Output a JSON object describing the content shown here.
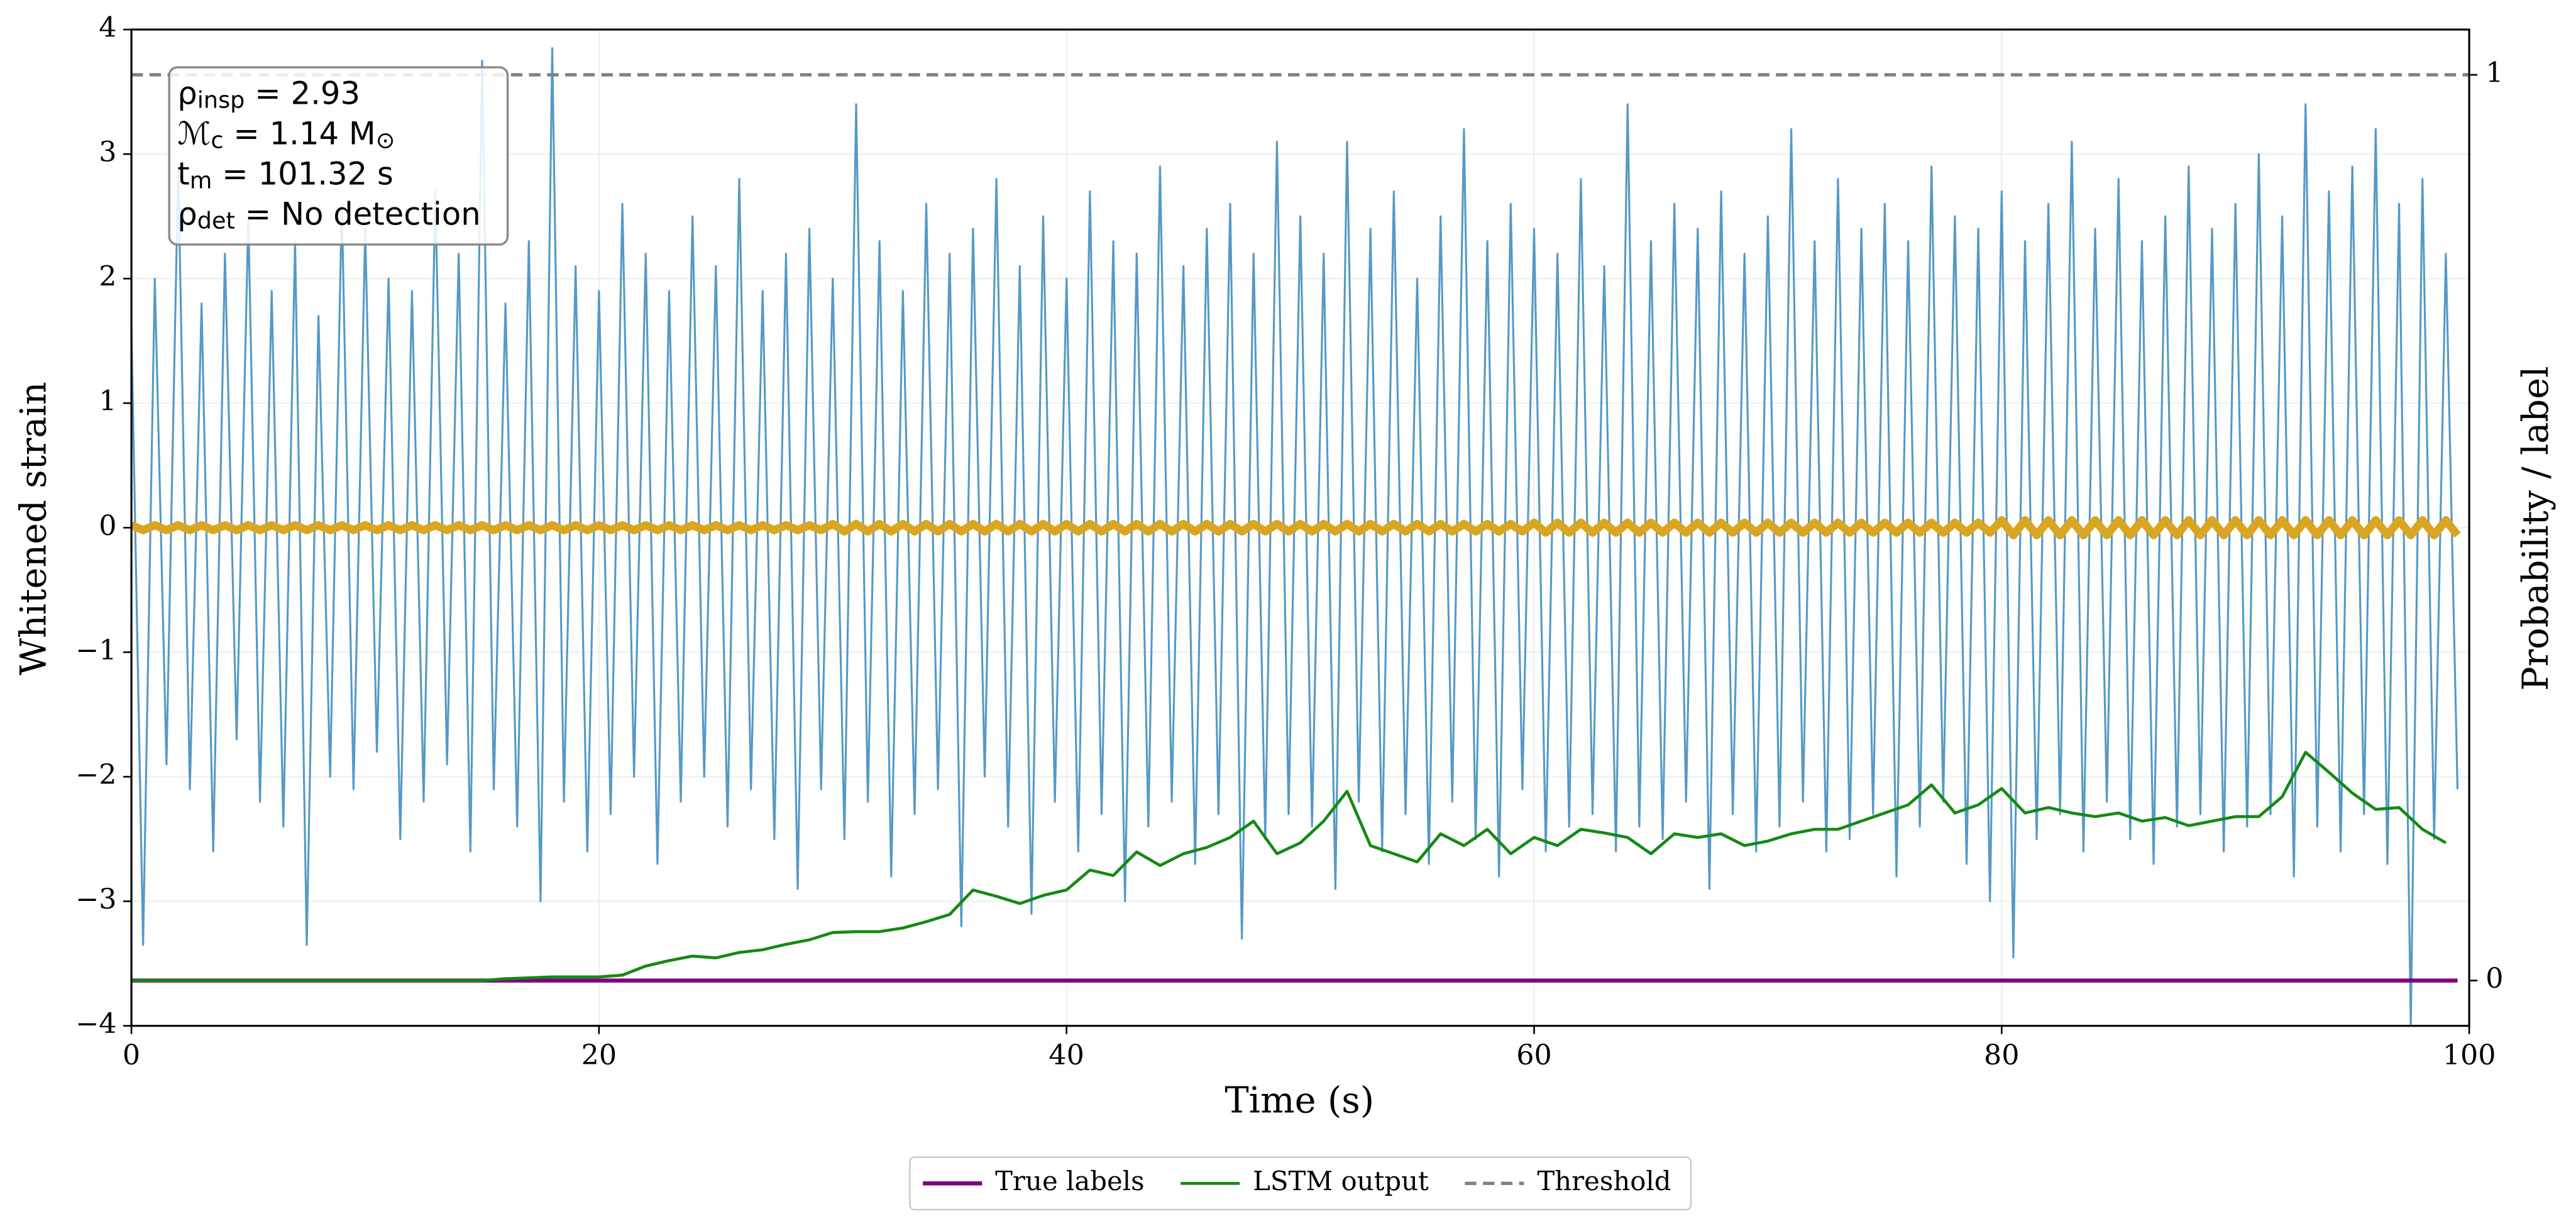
{
  "chart_data": {
    "type": "line",
    "xlabel": "Time (s)",
    "ylabel": "Whitened strain",
    "y2label": "Probability / label",
    "xlim": [
      0,
      100
    ],
    "xticks": [
      0,
      20,
      40,
      60,
      80,
      100
    ],
    "ylim": [
      -4,
      4
    ],
    "yticks": [
      {
        "value": -4,
        "label": "−4"
      },
      {
        "value": -3,
        "label": "−3"
      },
      {
        "value": -2,
        "label": "−2"
      },
      {
        "value": -1,
        "label": "−1"
      },
      0,
      1,
      2,
      3,
      4
    ],
    "y2lim": [
      -0.05,
      1.05
    ],
    "y2ticks": [
      0,
      1
    ],
    "grid": true,
    "legend": "bottom center",
    "annotations": [
      [
        {
          "text": "ρ"
        },
        {
          "text": "insp",
          "sub": true
        },
        {
          "text": " = 2.93"
        }
      ],
      [
        {
          "text": "ℳ"
        },
        {
          "text": "c",
          "sub": true
        },
        {
          "text": " = 1.14 M"
        },
        {
          "text": "⊙",
          "sub": true
        }
      ],
      [
        {
          "text": "t"
        },
        {
          "text": "m",
          "sub": true
        },
        {
          "text": " = 101.32 s"
        }
      ],
      [
        {
          "text": "ρ"
        },
        {
          "text": "det",
          "sub": true
        },
        {
          "text": " = No detection"
        }
      ]
    ],
    "x": [
      0,
      0.5,
      1,
      1.5,
      2,
      2.5,
      3,
      3.5,
      4,
      4.5,
      5,
      5.5,
      6,
      6.5,
      7,
      7.5,
      8,
      8.5,
      9,
      9.5,
      10,
      10.5,
      11,
      11.5,
      12,
      12.5,
      13,
      13.5,
      14,
      14.5,
      15,
      15.5,
      16,
      16.5,
      17,
      17.5,
      18,
      18.5,
      19,
      19.5,
      20,
      20.5,
      21,
      21.5,
      22,
      22.5,
      23,
      23.5,
      24,
      24.5,
      25,
      25.5,
      26,
      26.5,
      27,
      27.5,
      28,
      28.5,
      29,
      29.5,
      30,
      30.5,
      31,
      31.5,
      32,
      32.5,
      33,
      33.5,
      34,
      34.5,
      35,
      35.5,
      36,
      36.5,
      37,
      37.5,
      38,
      38.5,
      39,
      39.5,
      40,
      40.5,
      41,
      41.5,
      42,
      42.5,
      43,
      43.5,
      44,
      44.5,
      45,
      45.5,
      46,
      46.5,
      47,
      47.5,
      48,
      48.5,
      49,
      49.5,
      50,
      50.5,
      51,
      51.5,
      52,
      52.5,
      53,
      53.5,
      54,
      54.5,
      55,
      55.5,
      56,
      56.5,
      57,
      57.5,
      58,
      58.5,
      59,
      59.5,
      60,
      60.5,
      61,
      61.5,
      62,
      62.5,
      63,
      63.5,
      64,
      64.5,
      65,
      65.5,
      66,
      66.5,
      67,
      67.5,
      68,
      68.5,
      69,
      69.5,
      70,
      70.5,
      71,
      71.5,
      72,
      72.5,
      73,
      73.5,
      74,
      74.5,
      75,
      75.5,
      76,
      76.5,
      77,
      77.5,
      78,
      78.5,
      79,
      79.5,
      80,
      80.5,
      81,
      81.5,
      82,
      82.5,
      83,
      83.5,
      84,
      84.5,
      85,
      85.5,
      86,
      86.5,
      87,
      87.5,
      88,
      88.5,
      89,
      89.5,
      90,
      90.5,
      91,
      91.5,
      92,
      92.5,
      93,
      93.5,
      94,
      94.5,
      95,
      95.5,
      96,
      96.5,
      97,
      97.5,
      98,
      98.5,
      99,
      99.5
    ],
    "series": [
      {
        "color": "#5599c7",
        "width": 1.2,
        "values": [
          1.6,
          -3.35,
          2.0,
          -1.9,
          2.9,
          -2.1,
          1.8,
          -2.6,
          2.2,
          -1.7,
          2.5,
          -2.2,
          1.9,
          -2.4,
          2.3,
          -3.35,
          1.7,
          -2.0,
          2.6,
          -2.1,
          2.4,
          -1.8,
          2.0,
          -2.5,
          1.9,
          -2.2,
          2.7,
          -1.9,
          2.2,
          -2.6,
          3.75,
          -2.1,
          1.8,
          -2.4,
          2.3,
          -3.0,
          3.85,
          -2.2,
          2.1,
          -2.6,
          1.9,
          -2.3,
          2.6,
          -2.0,
          2.2,
          -2.7,
          1.9,
          -2.2,
          2.5,
          -2.0,
          2.1,
          -2.4,
          2.8,
          -2.1,
          1.9,
          -2.5,
          2.2,
          -2.9,
          2.4,
          -2.1,
          2.0,
          -2.5,
          3.4,
          -2.2,
          2.3,
          -2.8,
          1.9,
          -2.3,
          2.6,
          -2.1,
          2.2,
          -3.2,
          2.4,
          -2.0,
          2.8,
          -2.4,
          2.1,
          -3.1,
          2.5,
          -2.2,
          2.0,
          -2.6,
          2.7,
          -2.3,
          2.3,
          -3.0,
          2.2,
          -2.4,
          2.9,
          -2.2,
          2.1,
          -2.7,
          2.4,
          -2.3,
          2.6,
          -3.3,
          2.2,
          -2.5,
          3.1,
          -2.3,
          2.5,
          -2.4,
          2.2,
          -2.9,
          3.1,
          -2.2,
          2.4,
          -2.6,
          2.7,
          -2.3,
          2.0,
          -2.7,
          2.5,
          -2.2,
          3.2,
          -2.5,
          2.3,
          -2.8,
          2.6,
          -2.1,
          2.4,
          -2.6,
          2.2,
          -2.4,
          2.8,
          -2.3,
          2.1,
          -2.6,
          3.4,
          -2.4,
          2.3,
          -2.5,
          2.6,
          -2.2,
          2.4,
          -2.9,
          2.7,
          -2.3,
          2.2,
          -2.6,
          2.5,
          -2.4,
          3.2,
          -2.2,
          2.3,
          -2.6,
          2.8,
          -2.5,
          2.4,
          -2.3,
          2.6,
          -2.8,
          2.3,
          -2.4,
          2.9,
          -2.2,
          2.5,
          -2.7,
          2.4,
          -3.0,
          2.7,
          -3.45,
          2.3,
          -2.5,
          2.6,
          -2.3,
          3.1,
          -2.6,
          2.4,
          -2.2,
          2.8,
          -2.5,
          2.3,
          -2.7,
          2.5,
          -2.4,
          2.9,
          -2.3,
          2.4,
          -2.6,
          2.6,
          -2.4,
          3.0,
          -2.3,
          2.5,
          -2.8,
          3.4,
          -2.4,
          2.7,
          -2.6,
          2.9,
          -2.3,
          3.2,
          -2.7,
          2.6,
          -4.0,
          2.8,
          -2.5,
          2.2,
          -2.1
        ]
      },
      {
        "color": "#daa520",
        "width": 5,
        "values": [
          0.02,
          -0.02,
          0.02,
          -0.02,
          0.02,
          -0.02,
          0.02,
          -0.02,
          0.02,
          -0.02,
          0.02,
          -0.02,
          0.02,
          -0.02,
          0.02,
          -0.02,
          0.02,
          -0.02,
          0.02,
          -0.02,
          0.02,
          -0.02,
          0.02,
          -0.02,
          0.02,
          -0.02,
          0.02,
          -0.02,
          0.02,
          -0.02,
          0.02,
          -0.02,
          0.02,
          -0.02,
          0.02,
          -0.02,
          0.02,
          -0.02,
          0.02,
          -0.02,
          0.02,
          -0.02,
          0.02,
          -0.02,
          0.02,
          -0.02,
          0.02,
          -0.02,
          0.02,
          -0.02,
          0.02,
          -0.02,
          0.02,
          -0.02,
          0.02,
          -0.02,
          0.02,
          -0.02,
          0.02,
          -0.02,
          0.03,
          -0.03,
          0.03,
          -0.03,
          0.03,
          -0.03,
          0.03,
          -0.03,
          0.03,
          -0.03,
          0.03,
          -0.03,
          0.03,
          -0.03,
          0.03,
          -0.03,
          0.03,
          -0.03,
          0.03,
          -0.03,
          0.03,
          -0.03,
          0.03,
          -0.03,
          0.03,
          -0.03,
          0.03,
          -0.03,
          0.03,
          -0.03,
          0.03,
          -0.03,
          0.03,
          -0.03,
          0.03,
          -0.03,
          0.03,
          -0.03,
          0.03,
          -0.03,
          0.03,
          -0.03,
          0.03,
          -0.03,
          0.03,
          -0.03,
          0.03,
          -0.03,
          0.03,
          -0.03,
          0.03,
          -0.03,
          0.03,
          -0.03,
          0.03,
          -0.03,
          0.03,
          -0.03,
          0.03,
          -0.03,
          0.04,
          -0.04,
          0.04,
          -0.04,
          0.04,
          -0.04,
          0.04,
          -0.04,
          0.04,
          -0.04,
          0.04,
          -0.04,
          0.04,
          -0.04,
          0.04,
          -0.04,
          0.04,
          -0.04,
          0.04,
          -0.04,
          0.04,
          -0.04,
          0.04,
          -0.04,
          0.04,
          -0.04,
          0.04,
          -0.04,
          0.04,
          -0.04,
          0.04,
          -0.04,
          0.04,
          -0.04,
          0.04,
          -0.04,
          0.04,
          -0.04,
          0.04,
          -0.04,
          0.06,
          -0.06,
          0.06,
          -0.06,
          0.06,
          -0.06,
          0.06,
          -0.06,
          0.06,
          -0.06,
          0.06,
          -0.06,
          0.06,
          -0.06,
          0.06,
          -0.06,
          0.06,
          -0.06,
          0.06,
          -0.06,
          0.06,
          -0.06,
          0.06,
          -0.06,
          0.06,
          -0.06,
          0.06,
          -0.06,
          0.06,
          -0.06,
          0.06,
          -0.06,
          0.06,
          -0.06,
          0.06,
          -0.06,
          0.06,
          -0.06,
          0.06,
          -0.06
        ]
      },
      {
        "name": "True labels",
        "color": "#800080",
        "width": 2.5,
        "axis": "y2",
        "x": [
          0,
          99.5
        ],
        "values": [
          0,
          0
        ]
      },
      {
        "name": "LSTM output",
        "color": "#138a13",
        "width": 1.8,
        "axis": "y2",
        "x": [
          0,
          1,
          2,
          3,
          4,
          5,
          6,
          7,
          8,
          9,
          10,
          11,
          12,
          13,
          14,
          15,
          16,
          17,
          18,
          19,
          20,
          21,
          22,
          23,
          24,
          25,
          26,
          27,
          28,
          29,
          30,
          31,
          32,
          33,
          34,
          35,
          36,
          37,
          38,
          39,
          40,
          41,
          42,
          43,
          44,
          45,
          46,
          47,
          48,
          49,
          50,
          51,
          52,
          53,
          54,
          55,
          56,
          57,
          58,
          59,
          60,
          61,
          62,
          63,
          64,
          65,
          66,
          67,
          68,
          69,
          70,
          71,
          72,
          73,
          74,
          75,
          76,
          77,
          78,
          79,
          80,
          81,
          82,
          83,
          84,
          85,
          86,
          87,
          88,
          89,
          90,
          91,
          92,
          93,
          94,
          95,
          96,
          97,
          98,
          99
        ],
        "values": [
          0,
          0,
          0,
          0,
          0,
          0,
          0,
          0,
          0,
          0,
          0,
          0,
          0,
          0,
          0,
          0,
          0.002,
          0.003,
          0.004,
          0.004,
          0.004,
          0.006,
          0.016,
          0.022,
          0.027,
          0.025,
          0.031,
          0.034,
          0.04,
          0.045,
          0.053,
          0.054,
          0.054,
          0.058,
          0.065,
          0.073,
          0.1,
          0.093,
          0.085,
          0.094,
          0.1,
          0.122,
          0.116,
          0.142,
          0.127,
          0.14,
          0.147,
          0.158,
          0.176,
          0.14,
          0.152,
          0.176,
          0.209,
          0.149,
          0.14,
          0.131,
          0.162,
          0.149,
          0.167,
          0.14,
          0.158,
          0.149,
          0.167,
          0.163,
          0.158,
          0.14,
          0.162,
          0.158,
          0.162,
          0.149,
          0.154,
          0.162,
          0.167,
          0.167,
          0.176,
          0.185,
          0.194,
          0.216,
          0.185,
          0.194,
          0.212,
          0.185,
          0.191,
          0.185,
          0.181,
          0.185,
          0.176,
          0.18,
          0.171,
          0.176,
          0.181,
          0.181,
          0.203,
          0.252,
          0.23,
          0.207,
          0.189,
          0.191,
          0.167,
          0.152
        ]
      },
      {
        "name": "Threshold",
        "color": "#808080",
        "width": 2,
        "dash": "7 4",
        "axis": "y2",
        "x": [
          0,
          100
        ],
        "values": [
          1,
          1
        ]
      }
    ]
  }
}
